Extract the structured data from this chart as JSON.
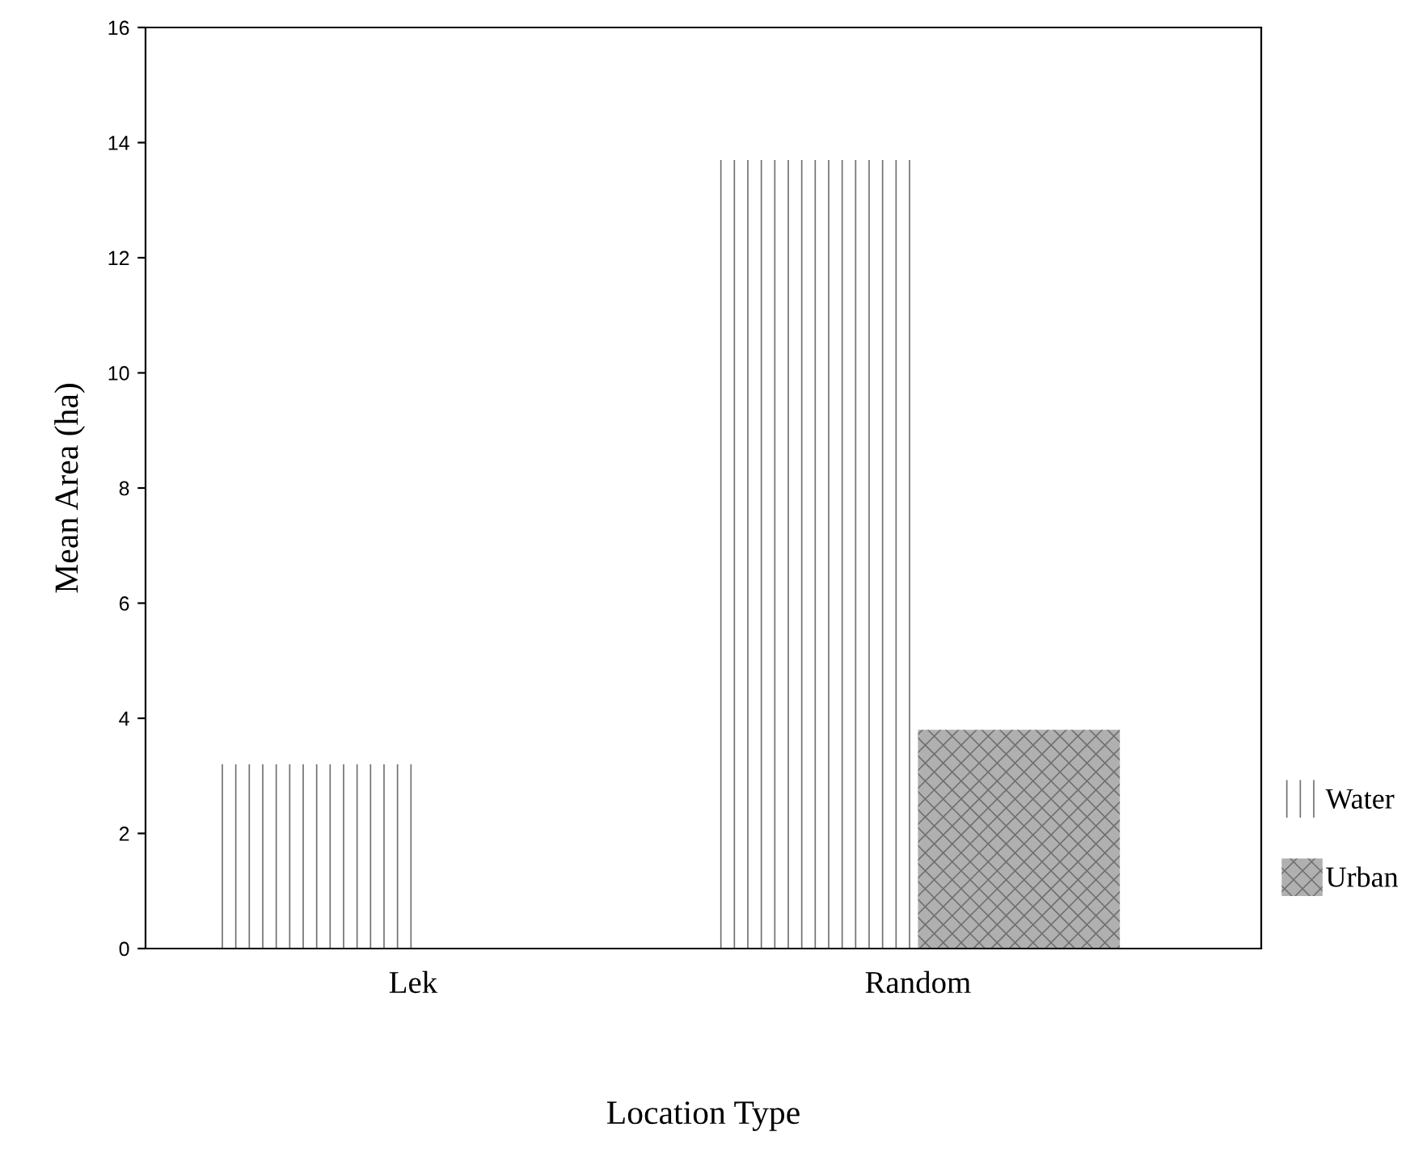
{
  "chart_data": {
    "type": "bar",
    "xlabel": "Location Type",
    "ylabel": "Mean Area (ha)",
    "categories": [
      "Lek",
      "Random"
    ],
    "series": [
      {
        "name": "Water",
        "color": "#ffffff",
        "values": [
          3.2,
          13.7
        ]
      },
      {
        "name": "Urban",
        "color": "#b0b0b0",
        "values": [
          null,
          3.8
        ]
      }
    ],
    "ylim": [
      0,
      16
    ],
    "yticks": [
      0,
      2,
      4,
      6,
      8,
      10,
      12,
      14,
      16
    ],
    "grid": false,
    "legend": "right"
  }
}
